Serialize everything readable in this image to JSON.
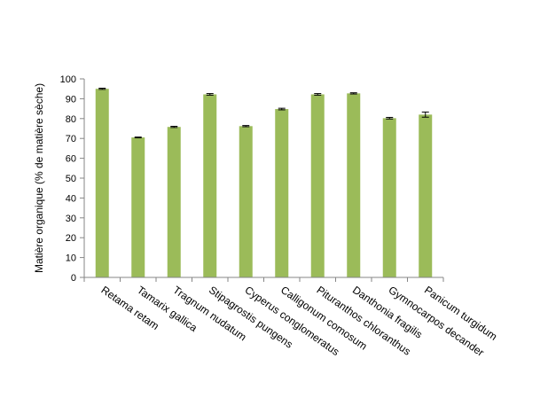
{
  "chart_data": {
    "type": "bar",
    "title": "",
    "xlabel": "",
    "ylabel": "Matière organique  (% de matière sèche)",
    "ylim": [
      0,
      100
    ],
    "yticks": [
      0,
      10,
      20,
      30,
      40,
      50,
      60,
      70,
      80,
      90,
      100
    ],
    "grid": false,
    "legend": "none",
    "bar_color": "#9BBB59",
    "error_color": "#000000",
    "categories": [
      "Retama retam",
      "Tamarix gallica",
      "Tragnum nudatum",
      "Stipagrostis pungens",
      "Cyperus conglomeratus",
      "Calligonum comosum",
      "Pituranthos chloranthus",
      "Danthonia fragilis",
      "Gymnocarpos  decander",
      "Panicum turgidum"
    ],
    "values": [
      95.0,
      70.5,
      75.8,
      92.2,
      76.2,
      84.8,
      92.2,
      92.7,
      80.2,
      82.0
    ],
    "errors": [
      0.3,
      0.2,
      0.3,
      0.4,
      0.3,
      0.4,
      0.4,
      0.3,
      0.4,
      1.3
    ]
  }
}
